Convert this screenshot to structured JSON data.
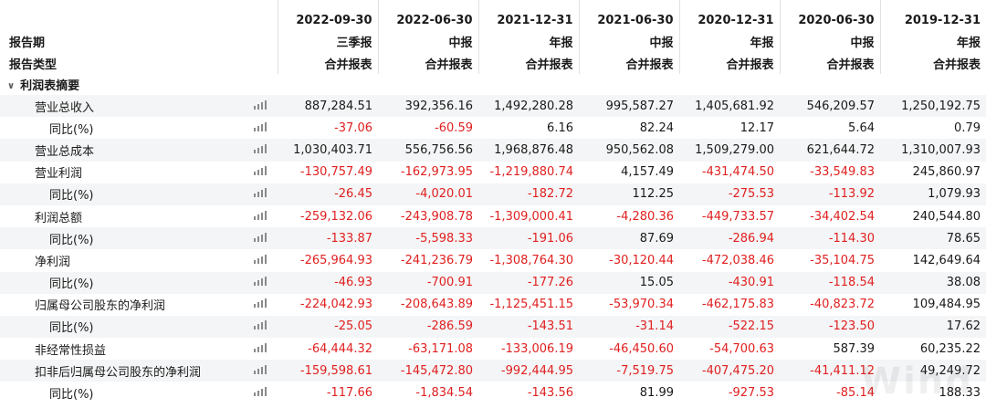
{
  "header": {
    "periods": [
      "2022-09-30",
      "2022-06-30",
      "2021-12-31",
      "2021-06-30",
      "2020-12-31",
      "2020-06-30",
      "2019-12-31"
    ],
    "report_period_label": "报告期",
    "report_periods": [
      "三季报",
      "中报",
      "年报",
      "中报",
      "年报",
      "中报",
      "年报"
    ],
    "report_type_label": "报告类型",
    "report_types": [
      "合并报表",
      "合并报表",
      "合并报表",
      "合并报表",
      "合并报表",
      "合并报表",
      "合并报表"
    ]
  },
  "section": {
    "title": "利润表摘要",
    "icon": "chevron-down-icon"
  },
  "rows": [
    {
      "label": "营业总收入",
      "sub": false,
      "values": [
        "887,284.51",
        "392,356.16",
        "1,492,280.28",
        "995,587.27",
        "1,405,681.92",
        "546,209.57",
        "1,250,192.75"
      ]
    },
    {
      "label": "同比(%)",
      "sub": true,
      "values": [
        "-37.06",
        "-60.59",
        "6.16",
        "82.24",
        "12.17",
        "5.64",
        "0.79"
      ]
    },
    {
      "label": "营业总成本",
      "sub": false,
      "values": [
        "1,030,403.71",
        "556,756.56",
        "1,968,876.48",
        "950,562.08",
        "1,509,279.00",
        "621,644.72",
        "1,310,007.93"
      ]
    },
    {
      "label": "营业利润",
      "sub": false,
      "values": [
        "-130,757.49",
        "-162,973.95",
        "-1,219,880.74",
        "4,157.49",
        "-431,474.50",
        "-33,549.83",
        "245,860.97"
      ]
    },
    {
      "label": "同比(%)",
      "sub": true,
      "values": [
        "-26.45",
        "-4,020.01",
        "-182.72",
        "112.25",
        "-275.53",
        "-113.92",
        "1,079.93"
      ]
    },
    {
      "label": "利润总额",
      "sub": false,
      "values": [
        "-259,132.06",
        "-243,908.78",
        "-1,309,000.41",
        "-4,280.36",
        "-449,733.57",
        "-34,402.54",
        "240,544.80"
      ]
    },
    {
      "label": "同比(%)",
      "sub": true,
      "values": [
        "-133.87",
        "-5,598.33",
        "-191.06",
        "87.69",
        "-286.94",
        "-114.30",
        "78.65"
      ]
    },
    {
      "label": "净利润",
      "sub": false,
      "values": [
        "-265,964.93",
        "-241,236.79",
        "-1,308,764.30",
        "-30,120.44",
        "-472,038.46",
        "-35,104.75",
        "142,649.64"
      ]
    },
    {
      "label": "同比(%)",
      "sub": true,
      "values": [
        "-46.93",
        "-700.91",
        "-177.26",
        "15.05",
        "-430.91",
        "-118.54",
        "38.08"
      ]
    },
    {
      "label": "归属母公司股东的净利润",
      "sub": false,
      "values": [
        "-224,042.93",
        "-208,643.89",
        "-1,125,451.15",
        "-53,970.34",
        "-462,175.83",
        "-40,823.72",
        "109,484.95"
      ]
    },
    {
      "label": "同比(%)",
      "sub": true,
      "values": [
        "-25.05",
        "-286.59",
        "-143.51",
        "-31.14",
        "-522.15",
        "-123.50",
        "17.62"
      ]
    },
    {
      "label": "非经常性损益",
      "sub": false,
      "values": [
        "-64,444.32",
        "-63,171.08",
        "-133,006.19",
        "-46,450.60",
        "-54,700.63",
        "587.39",
        "60,235.22"
      ]
    },
    {
      "label": "扣非后归属母公司股东的净利润",
      "sub": false,
      "values": [
        "-159,598.61",
        "-145,472.80",
        "-992,444.95",
        "-7,519.75",
        "-407,475.20",
        "-41,411.12",
        "49,249.72"
      ]
    },
    {
      "label": "同比(%)",
      "sub": true,
      "values": [
        "-117.66",
        "-1,834.54",
        "-143.56",
        "81.99",
        "-927.53",
        "-85.14",
        "188.33"
      ]
    }
  ],
  "row_icon": "bar-chart-icon",
  "colors": {
    "negative": "#e02020",
    "stripe": "#f4f5f6"
  },
  "watermark": "Wind"
}
